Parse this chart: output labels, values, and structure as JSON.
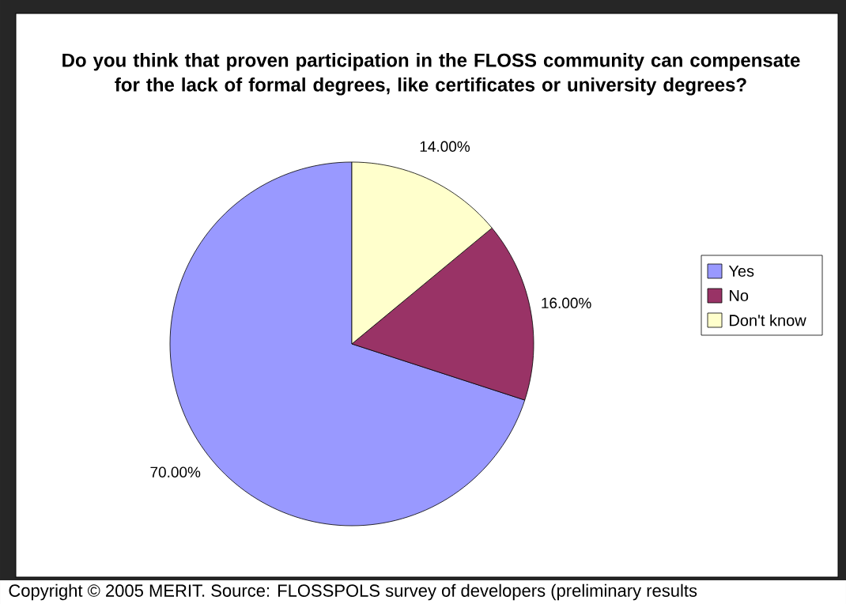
{
  "chart_data": {
    "type": "pie",
    "title": "Do you think that proven participation in the FLOSS community can compensate for the lack of formal degrees, like certificates or university degrees?",
    "categories": [
      "Yes",
      "No",
      "Don't know"
    ],
    "values": [
      70,
      16,
      14
    ],
    "colors": [
      "#9999ff",
      "#993366",
      "#ffffcc"
    ],
    "value_labels": [
      "70.00%",
      "16.00%",
      "14.00%"
    ],
    "legend": "right",
    "annotations": [
      "Copyright © 2005 MERIT. Source: FLOSSPOLS survey of developers (preliminary results"
    ]
  }
}
